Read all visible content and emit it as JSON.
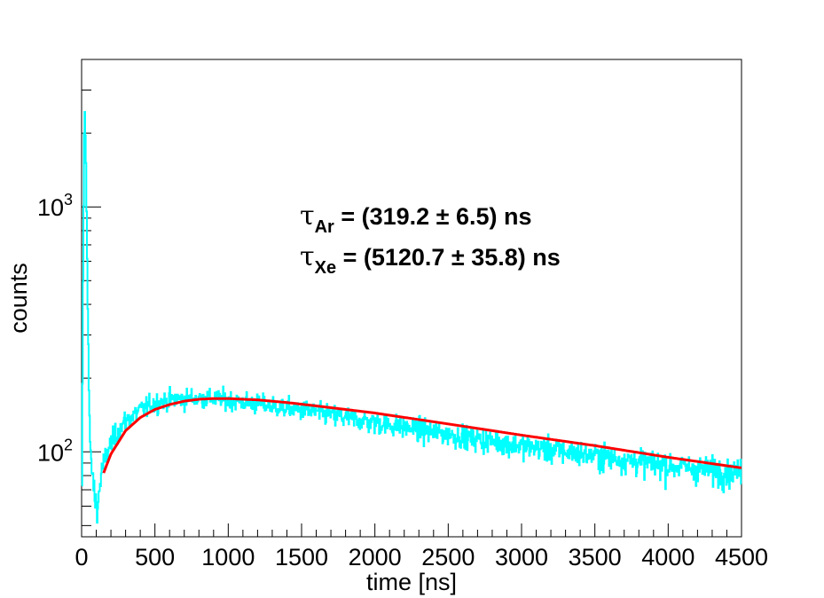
{
  "chart_data": {
    "type": "line",
    "title": "",
    "xlabel": "time [ns]",
    "ylabel": "counts",
    "xlim": [
      0,
      4500
    ],
    "ylim": [
      45,
      4000
    ],
    "ylog": true,
    "grid": false,
    "legend": "none",
    "x_ticks": [
      0,
      500,
      1000,
      1500,
      2000,
      2500,
      3000,
      3500,
      4000,
      4500
    ],
    "x_tick_labels": [
      "0",
      "500",
      "1000",
      "1500",
      "2000",
      "2500",
      "3000",
      "3500",
      "4000",
      "4500"
    ],
    "y_ticks": [
      {
        "value": 100,
        "base": "10",
        "exp": "2"
      },
      {
        "value": 1000,
        "base": "10",
        "exp": "3"
      }
    ],
    "annotations": [
      {
        "symbol": "τ",
        "sub": "Ar",
        "text": " = (319.2 ± 6.5) ns"
      },
      {
        "symbol": "τ",
        "sub": "Xe",
        "text": " = (5120.7 ± 35.8) ns"
      }
    ],
    "series": [
      {
        "kind": "histogram",
        "color": "#00ffff",
        "x": [
          0,
          10,
          20,
          30,
          40,
          50,
          60,
          70,
          80,
          90,
          100,
          110,
          120,
          130,
          140,
          150,
          160,
          175,
          200,
          250,
          300,
          400,
          500,
          600,
          700,
          800,
          900,
          1000,
          1100,
          1200,
          1400,
          1600,
          1800,
          2000,
          2200,
          2500,
          2800,
          3000,
          3300,
          3600,
          4000,
          4300,
          4500
        ],
        "y": [
          40,
          500,
          2800,
          1500,
          500,
          180,
          95,
          85,
          75,
          65,
          62,
          60,
          68,
          78,
          85,
          88,
          92,
          100,
          108,
          122,
          134,
          148,
          158,
          163,
          165,
          166,
          165,
          163,
          160,
          157,
          151,
          145,
          138,
          132,
          126,
          118,
          111,
          106,
          100,
          95,
          88,
          84,
          82
        ]
      },
      {
        "kind": "fit",
        "color": "#ff0000",
        "x": [
          150,
          200,
          300,
          400,
          500,
          600,
          700,
          800,
          900,
          1000,
          1200,
          1400,
          1600,
          1800,
          2000,
          2500,
          3000,
          3500,
          4000,
          4500
        ],
        "y": [
          82,
          98,
          122,
          138,
          149,
          156,
          161,
          164,
          165,
          165,
          163,
          159,
          154,
          149,
          144,
          130,
          117,
          106,
          95,
          86
        ]
      }
    ]
  }
}
